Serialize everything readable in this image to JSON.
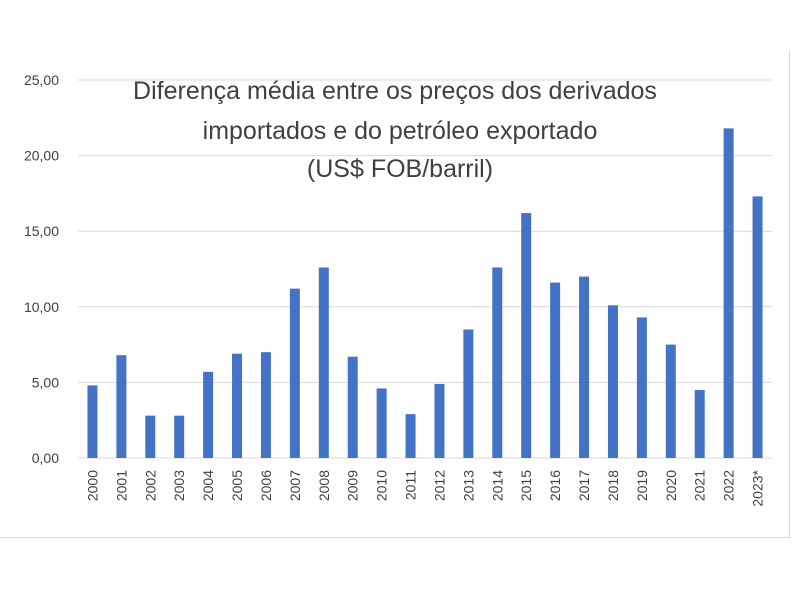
{
  "chart_data": {
    "type": "bar",
    "title_lines": [
      "Diferença média entre os preços dos derivados",
      "importados e do petróleo exportado",
      "(US$ FOB/barril)"
    ],
    "xlabel": "",
    "ylabel": "",
    "categories": [
      "2000",
      "2001",
      "2002",
      "2003",
      "2004",
      "2005",
      "2006",
      "2007",
      "2008",
      "2009",
      "2010",
      "2011",
      "2012",
      "2013",
      "2014",
      "2015",
      "2016",
      "2017",
      "2018",
      "2019",
      "2020",
      "2021",
      "2022",
      "2023*"
    ],
    "values": [
      4.8,
      6.8,
      2.8,
      2.8,
      5.7,
      6.9,
      7.0,
      11.2,
      12.6,
      6.7,
      4.6,
      2.9,
      4.9,
      8.5,
      12.6,
      16.2,
      11.6,
      12.0,
      10.1,
      9.3,
      7.5,
      4.5,
      21.8,
      17.3
    ],
    "ylim": [
      0,
      25
    ],
    "yticks": [
      "0,00",
      "5,00",
      "10,00",
      "15,00",
      "20,00",
      "25,00"
    ],
    "ytick_values": [
      0,
      5,
      10,
      15,
      20,
      25
    ],
    "grid": true,
    "legend": "none",
    "bar_color": "#4472c4",
    "grid_color": "#d9d9d9"
  }
}
